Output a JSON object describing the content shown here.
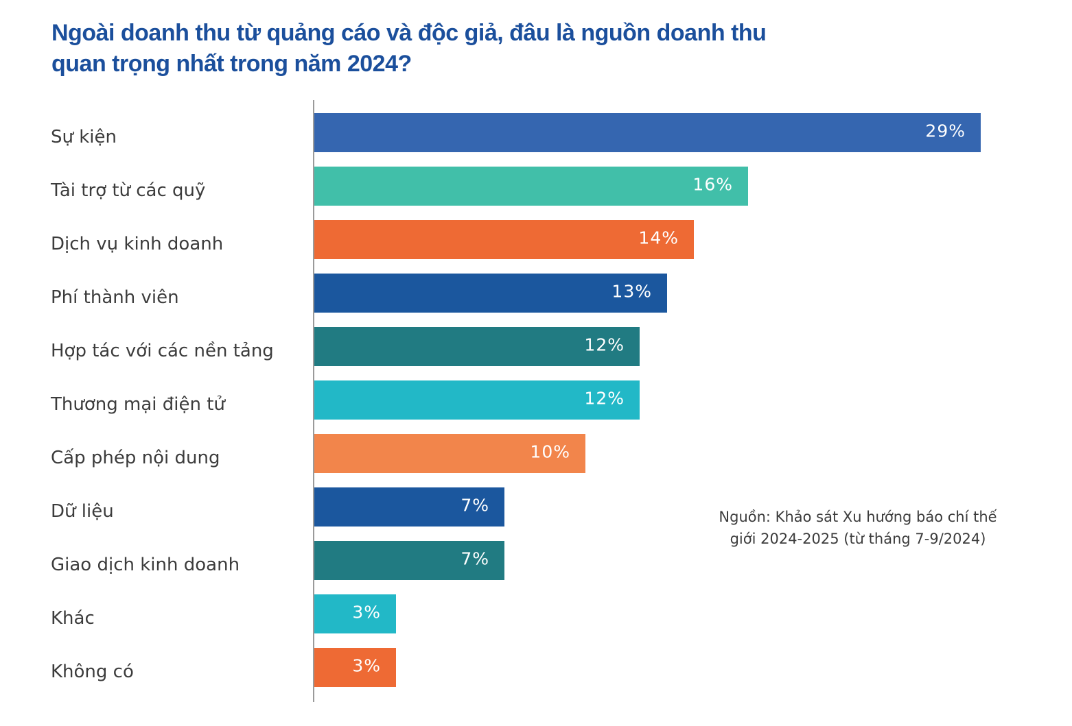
{
  "chart_data": {
    "type": "bar",
    "orientation": "horizontal",
    "title": "Ngoài doanh thu từ quảng cáo và độc giả, đâu là nguồn doanh thu quan trọng nhất trong năm 2024?",
    "title_lines": [
      "Ngoài doanh thu từ quảng cáo và độc giả, đâu là nguồn doanh thu",
      "quan trọng nhất trong năm 2024?"
    ],
    "xlabel": "",
    "ylabel": "",
    "grid": false,
    "legend": "none",
    "categories": [
      "Sự kiện",
      "Tài trợ từ các quỹ",
      "Dịch vụ kinh doanh",
      "Phí thành viên",
      "Hợp tác với các nền tảng",
      "Thương mại điện tử",
      "Cấp phép nội dung",
      "Dữ liệu",
      "Giao dịch kinh doanh",
      "Khác",
      "Không có"
    ],
    "values": [
      29,
      16,
      14,
      13,
      12,
      12,
      10,
      7,
      7,
      3,
      3
    ],
    "data_labels": [
      "29%",
      "16%",
      "14%",
      "13%",
      "12%",
      "12%",
      "10%",
      "7%",
      "7%",
      "3%",
      "3%"
    ],
    "colors": [
      "#3566b0",
      "#41bfa9",
      "#ee6a34",
      "#1b579e",
      "#217b82",
      "#22b8c7",
      "#f2854b",
      "#1b579e",
      "#217b82",
      "#22b8c7",
      "#ee6a34"
    ],
    "unit": "%",
    "annotation": "Nguồn: Khảo sát Xu hướng báo chí thế giới 2024-2025 (từ tháng 7-9/2024)"
  },
  "source": {
    "line1": "Nguồn: Khảo sát Xu hướng báo chí thế giới",
    "line2": "giới 2024-2025 (từ tháng 7-9/2024)"
  }
}
